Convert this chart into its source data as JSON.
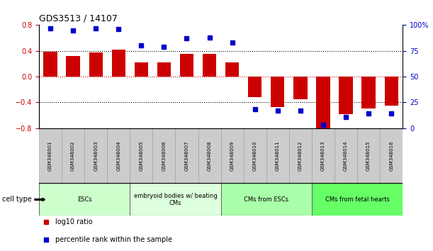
{
  "title": "GDS3513 / 14107",
  "samples": [
    "GSM348001",
    "GSM348002",
    "GSM348003",
    "GSM348004",
    "GSM348005",
    "GSM348006",
    "GSM348007",
    "GSM348008",
    "GSM348009",
    "GSM348010",
    "GSM348011",
    "GSM348012",
    "GSM348013",
    "GSM348014",
    "GSM348015",
    "GSM348016"
  ],
  "log10_ratio": [
    0.38,
    0.32,
    0.37,
    0.42,
    0.22,
    0.22,
    0.35,
    0.35,
    0.22,
    -0.32,
    -0.47,
    -0.35,
    -0.8,
    -0.58,
    -0.5,
    -0.45
  ],
  "percentile_rank": [
    97,
    95,
    97,
    96,
    80,
    79,
    87,
    88,
    83,
    18,
    17,
    17,
    3,
    11,
    14,
    14
  ],
  "bar_color": "#cc0000",
  "dot_color": "#0000cc",
  "ylim_left": [
    -0.8,
    0.8
  ],
  "ylim_right": [
    0,
    100
  ],
  "yticks_left": [
    -0.8,
    -0.4,
    0.0,
    0.4,
    0.8
  ],
  "yticks_right": [
    0,
    25,
    50,
    75,
    100
  ],
  "ytick_labels_right": [
    "0",
    "25",
    "50",
    "75",
    "100%"
  ],
  "dotted_lines": [
    -0.4,
    0.0,
    0.4
  ],
  "cell_type_groups": [
    {
      "label": "ESCs",
      "start": 0,
      "end": 3,
      "color": "#ccffcc"
    },
    {
      "label": "embryoid bodies w/ beating\nCMs",
      "start": 4,
      "end": 7,
      "color": "#ddffdd"
    },
    {
      "label": "CMs from ESCs",
      "start": 8,
      "end": 11,
      "color": "#aaffaa"
    },
    {
      "label": "CMs from fetal hearts",
      "start": 12,
      "end": 15,
      "color": "#66ff66"
    }
  ],
  "legend_items": [
    {
      "label": "log10 ratio",
      "color": "#cc0000"
    },
    {
      "label": "percentile rank within the sample",
      "color": "#0000cc"
    }
  ],
  "background_color": "#ffffff",
  "tick_label_color_left": "#cc0000",
  "tick_label_color_right": "#0000cc",
  "sample_box_color": "#cccccc",
  "sample_box_edge": "#999999",
  "cell_type_label": "cell type",
  "cell_type_label_fontsize": 7,
  "bar_width": 0.6,
  "dot_size": 4,
  "label_fontsize": 6,
  "axis_fontsize": 7,
  "title_fontsize": 9
}
